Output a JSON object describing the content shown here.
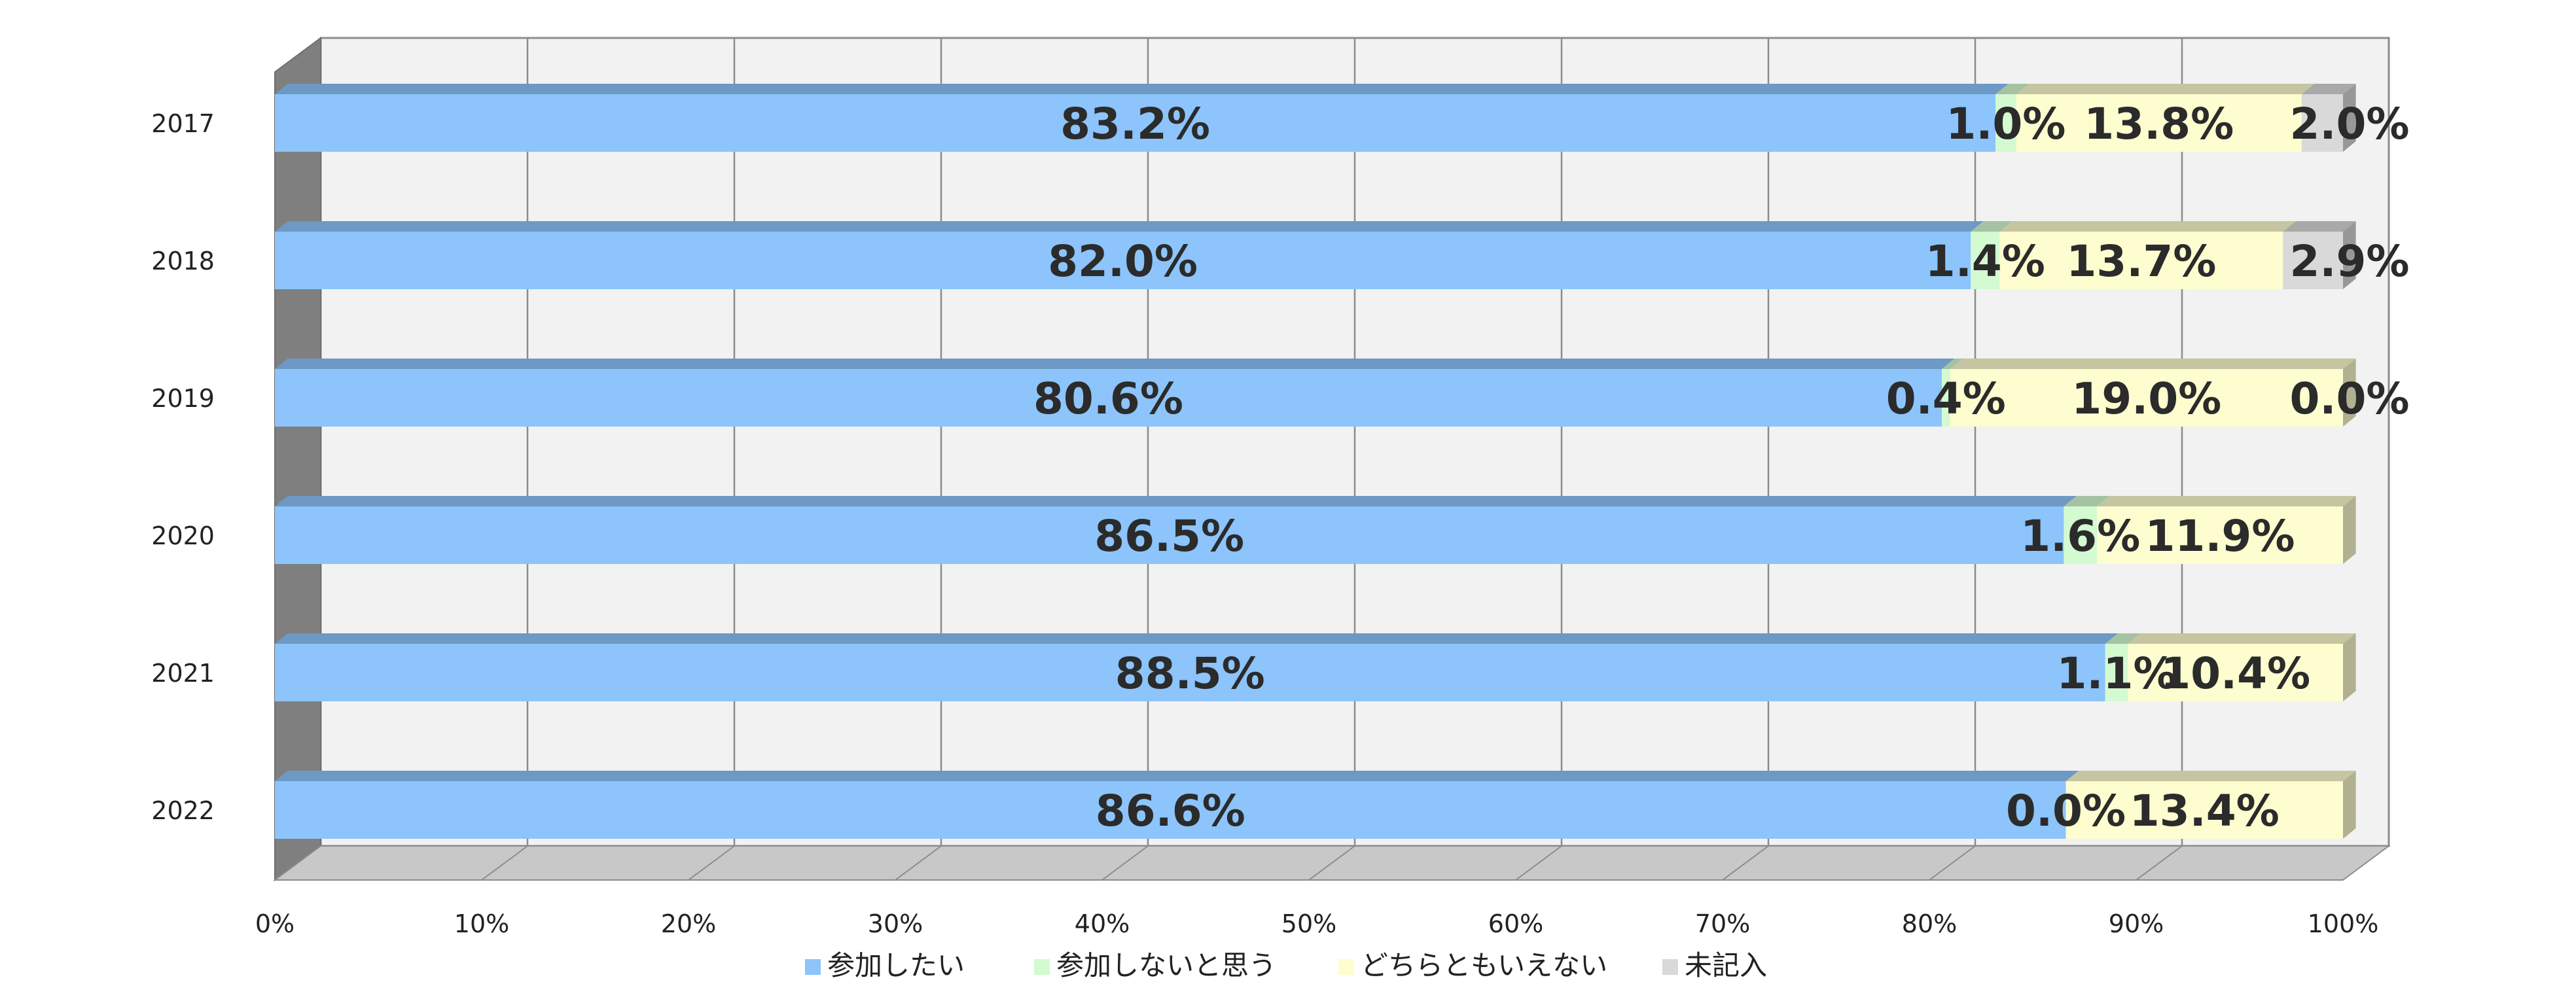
{
  "chart_data": {
    "type": "bar",
    "orientation": "horizontal",
    "stacked": "percent",
    "title": "",
    "xlabel": "",
    "ylabel": "",
    "xlim": [
      0,
      100
    ],
    "x_ticks": [
      "0%",
      "10%",
      "20%",
      "30%",
      "40%",
      "50%",
      "60%",
      "70%",
      "80%",
      "90%",
      "100%"
    ],
    "categories": [
      "2017",
      "2018",
      "2019",
      "2020",
      "2021",
      "2022"
    ],
    "series": [
      {
        "name": "参加したい",
        "color": "#8cc4fb",
        "values": [
          83.2,
          82.0,
          80.6,
          86.5,
          88.5,
          86.6
        ],
        "labels": [
          "83.2%",
          "82.0%",
          "80.6%",
          "86.5%",
          "88.5%",
          "86.6%"
        ]
      },
      {
        "name": "参加しないと思う",
        "color": "#d3fad0",
        "values": [
          1.0,
          1.4,
          0.4,
          1.6,
          1.1,
          0.0
        ],
        "labels": [
          "1.0%",
          "1.4%",
          "0.4%",
          "1.6%",
          "1.1%",
          "0.0%"
        ]
      },
      {
        "name": "どちらともいえない",
        "color": "#fdfdcf",
        "values": [
          13.8,
          13.7,
          19.0,
          11.9,
          10.4,
          13.4
        ],
        "labels": [
          "13.8%",
          "13.7%",
          "19.0%",
          "11.9%",
          "10.4%",
          "13.4%"
        ]
      },
      {
        "name": "未記入",
        "color": "#d9d9d9",
        "values": [
          2.0,
          2.9,
          0.0,
          null,
          null,
          null
        ],
        "labels": [
          "2.0%",
          "2.9%",
          "0.0%",
          null,
          null,
          null
        ]
      }
    ],
    "grid": true,
    "legend": "bottom",
    "style": "3d"
  }
}
